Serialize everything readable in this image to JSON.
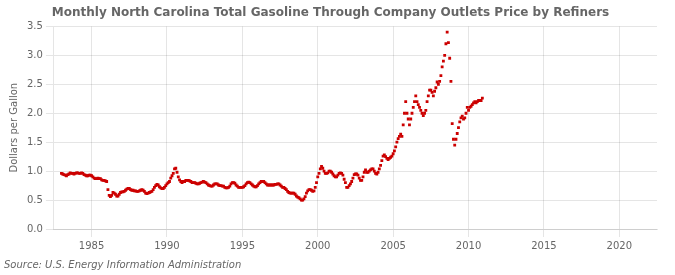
{
  "chart_data": {
    "type": "scatter",
    "title": "Monthly North Carolina Total Gasoline Through Company Outlets Price by Refiners",
    "ylabel": "Dollars per Gallon",
    "source": "Source: U.S. Energy Information Administration",
    "color": "#cc0000",
    "marker": "square",
    "grid": true,
    "xlim": [
      1982.5,
      2022.5
    ],
    "ylim": [
      0.0,
      3.5
    ],
    "xticks": [
      1985,
      1990,
      1995,
      2000,
      2005,
      2010,
      2015,
      2020
    ],
    "yticks": [
      {
        "value": 0.0,
        "label": "0.0"
      },
      0.5,
      {
        "value": 1.0,
        "label": "1.0"
      },
      1.5,
      {
        "value": 2.0,
        "label": "2.0"
      },
      2.5,
      {
        "value": 3.0,
        "label": "3.0"
      },
      3.5
    ],
    "x": [
      1983.0,
      1983.083,
      1983.167,
      1983.25,
      1983.333,
      1983.417,
      1983.5,
      1983.583,
      1983.667,
      1983.75,
      1983.833,
      1983.917,
      1984.0,
      1984.083,
      1984.167,
      1984.25,
      1984.333,
      1984.417,
      1984.5,
      1984.583,
      1984.667,
      1984.75,
      1984.833,
      1984.917,
      1985.0,
      1985.083,
      1985.167,
      1985.25,
      1985.333,
      1985.417,
      1985.5,
      1985.583,
      1985.667,
      1985.75,
      1985.833,
      1985.917,
      1986.0,
      1986.083,
      1986.167,
      1986.25,
      1986.333,
      1986.417,
      1986.5,
      1986.583,
      1986.667,
      1986.75,
      1986.833,
      1986.917,
      1987.0,
      1987.083,
      1987.167,
      1987.25,
      1987.333,
      1987.417,
      1987.5,
      1987.583,
      1987.667,
      1987.75,
      1987.833,
      1987.917,
      1988.0,
      1988.083,
      1988.167,
      1988.25,
      1988.333,
      1988.417,
      1988.5,
      1988.583,
      1988.667,
      1988.75,
      1988.833,
      1988.917,
      1989.0,
      1989.083,
      1989.167,
      1989.25,
      1989.333,
      1989.417,
      1989.5,
      1989.583,
      1989.667,
      1989.75,
      1989.833,
      1989.917,
      1990.0,
      1990.083,
      1990.167,
      1990.25,
      1990.333,
      1990.417,
      1990.5,
      1990.583,
      1990.667,
      1990.75,
      1990.833,
      1990.917,
      1991.0,
      1991.083,
      1991.167,
      1991.25,
      1991.333,
      1991.417,
      1991.5,
      1991.583,
      1991.667,
      1991.75,
      1991.833,
      1991.917,
      1992.0,
      1992.083,
      1992.167,
      1992.25,
      1992.333,
      1992.417,
      1992.5,
      1992.583,
      1992.667,
      1992.75,
      1992.833,
      1992.917,
      1993.0,
      1993.083,
      1993.167,
      1993.25,
      1993.333,
      1993.417,
      1993.5,
      1993.583,
      1993.667,
      1993.75,
      1993.833,
      1993.917,
      1994.0,
      1994.083,
      1994.167,
      1994.25,
      1994.333,
      1994.417,
      1994.5,
      1994.583,
      1994.667,
      1994.75,
      1994.833,
      1994.917,
      1995.0,
      1995.083,
      1995.167,
      1995.25,
      1995.333,
      1995.417,
      1995.5,
      1995.583,
      1995.667,
      1995.75,
      1995.833,
      1995.917,
      1996.0,
      1996.083,
      1996.167,
      1996.25,
      1996.333,
      1996.417,
      1996.5,
      1996.583,
      1996.667,
      1996.75,
      1996.833,
      1996.917,
      1997.0,
      1997.083,
      1997.167,
      1997.25,
      1997.333,
      1997.417,
      1997.5,
      1997.583,
      1997.667,
      1997.75,
      1997.833,
      1997.917,
      1998.0,
      1998.083,
      1998.167,
      1998.25,
      1998.333,
      1998.417,
      1998.5,
      1998.583,
      1998.667,
      1998.75,
      1998.833,
      1998.917,
      1999.0,
      1999.083,
      1999.167,
      1999.25,
      1999.333,
      1999.417,
      1999.5,
      1999.583,
      1999.667,
      1999.75,
      1999.833,
      1999.917,
      2000.0,
      2000.083,
      2000.167,
      2000.25,
      2000.333,
      2000.417,
      2000.5,
      2000.583,
      2000.667,
      2000.75,
      2000.833,
      2000.917,
      2001.0,
      2001.083,
      2001.167,
      2001.25,
      2001.333,
      2001.417,
      2001.5,
      2001.583,
      2001.667,
      2001.75,
      2001.833,
      2001.917,
      2002.0,
      2002.083,
      2002.167,
      2002.25,
      2002.333,
      2002.417,
      2002.5,
      2002.583,
      2002.667,
      2002.75,
      2002.833,
      2002.917,
      2003.0,
      2003.083,
      2003.167,
      2003.25,
      2003.333,
      2003.417,
      2003.5,
      2003.583,
      2003.667,
      2003.75,
      2003.833,
      2003.917,
      2004.0,
      2004.083,
      2004.167,
      2004.25,
      2004.333,
      2004.417,
      2004.5,
      2004.583,
      2004.667,
      2004.75,
      2004.833,
      2004.917,
      2005.0,
      2005.083,
      2005.167,
      2005.25,
      2005.333,
      2005.417,
      2005.5,
      2005.583,
      2005.667,
      2005.75,
      2005.833,
      2005.917,
      2006.0,
      2006.083,
      2006.167,
      2006.25,
      2006.333,
      2006.417,
      2006.5,
      2006.583,
      2006.667,
      2006.75,
      2006.833,
      2006.917,
      2007.0,
      2007.083,
      2007.167,
      2007.25,
      2007.333,
      2007.417,
      2007.5,
      2007.583,
      2007.667,
      2007.75,
      2007.833,
      2007.917,
      2008.0,
      2008.083,
      2008.167,
      2008.25,
      2008.333,
      2008.417,
      2008.5,
      2008.583,
      2008.667,
      2008.75,
      2008.833,
      2008.917,
      2009.0,
      2009.083,
      2009.167,
      2009.25,
      2009.333,
      2009.417,
      2009.5,
      2009.583,
      2009.667,
      2009.75,
      2009.833,
      2009.917,
      2010.0,
      2010.083,
      2010.167,
      2010.25,
      2010.333,
      2010.417,
      2010.5,
      2010.583,
      2010.667,
      2010.75,
      2010.833,
      2010.917
    ],
    "values": [
      0.96,
      0.95,
      0.94,
      0.93,
      0.92,
      0.94,
      0.95,
      0.97,
      0.96,
      0.96,
      0.95,
      0.96,
      0.97,
      0.97,
      0.96,
      0.96,
      0.97,
      0.96,
      0.94,
      0.93,
      0.92,
      0.92,
      0.93,
      0.93,
      0.92,
      0.9,
      0.88,
      0.87,
      0.87,
      0.88,
      0.87,
      0.87,
      0.85,
      0.84,
      0.84,
      0.83,
      0.82,
      0.68,
      0.58,
      0.56,
      0.58,
      0.63,
      0.62,
      0.6,
      0.57,
      0.57,
      0.6,
      0.63,
      0.64,
      0.64,
      0.65,
      0.67,
      0.69,
      0.7,
      0.7,
      0.68,
      0.67,
      0.67,
      0.66,
      0.66,
      0.65,
      0.65,
      0.66,
      0.67,
      0.68,
      0.67,
      0.65,
      0.62,
      0.61,
      0.62,
      0.63,
      0.64,
      0.65,
      0.68,
      0.72,
      0.75,
      0.77,
      0.76,
      0.73,
      0.71,
      0.7,
      0.7,
      0.72,
      0.75,
      0.78,
      0.8,
      0.82,
      0.88,
      0.92,
      0.96,
      1.04,
      1.05,
      0.98,
      0.9,
      0.85,
      0.82,
      0.8,
      0.82,
      0.82,
      0.84,
      0.84,
      0.84,
      0.83,
      0.82,
      0.8,
      0.8,
      0.8,
      0.79,
      0.78,
      0.78,
      0.79,
      0.8,
      0.81,
      0.82,
      0.81,
      0.8,
      0.78,
      0.76,
      0.75,
      0.74,
      0.74,
      0.76,
      0.78,
      0.78,
      0.78,
      0.76,
      0.75,
      0.75,
      0.74,
      0.74,
      0.72,
      0.71,
      0.71,
      0.72,
      0.74,
      0.78,
      0.8,
      0.8,
      0.79,
      0.76,
      0.74,
      0.72,
      0.72,
      0.72,
      0.72,
      0.73,
      0.75,
      0.78,
      0.8,
      0.81,
      0.8,
      0.78,
      0.76,
      0.74,
      0.73,
      0.73,
      0.75,
      0.78,
      0.8,
      0.82,
      0.82,
      0.82,
      0.8,
      0.78,
      0.76,
      0.76,
      0.76,
      0.76,
      0.76,
      0.76,
      0.77,
      0.77,
      0.78,
      0.78,
      0.76,
      0.74,
      0.72,
      0.72,
      0.7,
      0.68,
      0.65,
      0.63,
      0.62,
      0.62,
      0.62,
      0.62,
      0.6,
      0.57,
      0.55,
      0.54,
      0.52,
      0.5,
      0.5,
      0.52,
      0.56,
      0.62,
      0.66,
      0.68,
      0.68,
      0.67,
      0.65,
      0.66,
      0.72,
      0.8,
      0.9,
      0.96,
      1.04,
      1.08,
      1.05,
      1.0,
      0.96,
      0.96,
      0.97,
      1.0,
      1.0,
      0.98,
      0.95,
      0.92,
      0.9,
      0.9,
      0.93,
      0.96,
      0.97,
      0.96,
      0.93,
      0.86,
      0.8,
      0.72,
      0.72,
      0.75,
      0.78,
      0.82,
      0.88,
      0.94,
      0.95,
      0.95,
      0.93,
      0.88,
      0.84,
      0.84,
      0.9,
      0.98,
      1.02,
      0.98,
      0.98,
      1.0,
      1.02,
      1.04,
      1.04,
      1.0,
      0.96,
      0.95,
      0.98,
      1.04,
      1.1,
      1.18,
      1.26,
      1.28,
      1.25,
      1.22,
      1.2,
      1.22,
      1.24,
      1.26,
      1.3,
      1.35,
      1.42,
      1.5,
      1.56,
      1.6,
      1.64,
      1.6,
      1.8,
      2.0,
      2.2,
      2.0,
      1.9,
      1.8,
      1.9,
      2.0,
      2.1,
      2.2,
      2.3,
      2.2,
      2.15,
      2.1,
      2.05,
      2.0,
      1.96,
      2.0,
      2.05,
      2.2,
      2.3,
      2.4,
      2.4,
      2.36,
      2.3,
      2.38,
      2.44,
      2.54,
      2.5,
      2.55,
      2.65,
      2.8,
      2.9,
      3.0,
      3.2,
      3.4,
      3.22,
      2.95,
      2.55,
      1.82,
      1.55,
      1.45,
      1.55,
      1.65,
      1.75,
      1.85,
      1.92,
      1.95,
      1.9,
      1.92,
      2.0,
      2.1,
      2.05,
      2.1,
      2.12,
      2.15,
      2.18,
      2.2,
      2.18,
      2.2,
      2.22,
      2.22,
      2.22,
      2.26
    ]
  }
}
